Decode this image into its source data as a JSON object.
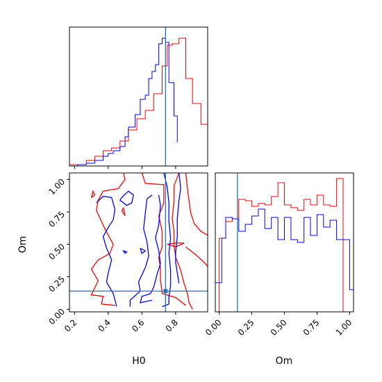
{
  "chart_data": {
    "type": "corner",
    "parameters": [
      "H0",
      "Om"
    ],
    "truths": {
      "H0": 0.74,
      "Om": 0.14
    },
    "colors": {
      "series_red": "#ff0000",
      "series_blue": "#0000ff",
      "truth": "#1f77b4"
    },
    "grid": false,
    "legend": "none",
    "panels": [
      {
        "id": "hist-h0",
        "type": "histogram",
        "xlim": [
          0.17,
          0.99
        ],
        "xlabel": "",
        "series": [
          {
            "color": "#ff0000",
            "bin_edges": [
              0.17,
              0.22,
              0.27,
              0.32,
              0.37,
              0.42,
              0.47,
              0.52,
              0.57,
              0.62,
              0.67,
              0.72,
              0.75,
              0.78,
              0.82,
              0.86,
              0.9,
              0.95,
              0.99
            ],
            "heights": [
              0.01,
              0.01,
              0.04,
              0.07,
              0.11,
              0.13,
              0.18,
              0.26,
              0.34,
              0.4,
              0.52,
              0.72,
              0.87,
              0.88,
              0.92,
              0.63,
              0.45,
              0.3
            ]
          },
          {
            "color": "#0000ff",
            "bin_edges": [
              0.22,
              0.27,
              0.32,
              0.37,
              0.4,
              0.43,
              0.47,
              0.5,
              0.52,
              0.56,
              0.59,
              0.62,
              0.64,
              0.66,
              0.68,
              0.7,
              0.72,
              0.74,
              0.76,
              0.79,
              0.81
            ],
            "heights": [
              0.01,
              0.02,
              0.04,
              0.07,
              0.09,
              0.11,
              0.14,
              0.21,
              0.28,
              0.37,
              0.48,
              0.51,
              0.63,
              0.68,
              0.73,
              0.88,
              0.92,
              0.89,
              0.6,
              0.36,
              0.17
            ]
          }
        ]
      },
      {
        "id": "contour-h0-om",
        "type": "contour",
        "xlim": [
          0.17,
          0.99
        ],
        "ylim": [
          -0.02,
          1.05
        ],
        "xlabel": "H0",
        "ylabel": "Om",
        "xticks": [
          0.2,
          0.4,
          0.6,
          0.8
        ],
        "xtick_labels": [
          "0.2",
          "0.4",
          "0.6",
          "0.8"
        ],
        "yticks": [
          0.0,
          0.25,
          0.5,
          0.75,
          1.0
        ],
        "ytick_labels": [
          "0.00",
          "0.25",
          "0.50",
          "0.75",
          "1.00"
        ],
        "contours": [
          {
            "color": "#ff0000",
            "paths": [
              [
                [
                  0.49,
                  1.05
                ],
                [
                  0.5,
                  1.0
                ],
                [
                  0.46,
                  0.93
                ],
                [
                  0.37,
                  0.91
                ],
                [
                  0.34,
                  0.84
                ],
                [
                  0.33,
                  0.76
                ],
                [
                  0.38,
                  0.62
                ],
                [
                  0.43,
                  0.5
                ],
                [
                  0.41,
                  0.43
                ],
                [
                  0.34,
                  0.38
                ],
                [
                  0.3,
                  0.31
                ],
                [
                  0.34,
                  0.22
                ],
                [
                  0.3,
                  0.11
                ],
                [
                  0.37,
                  0.1
                ],
                [
                  0.36,
                  0.04
                ],
                [
                  0.44,
                  0.03
                ]
              ],
              [
                [
                  0.6,
                  1.05
                ],
                [
                  0.62,
                  0.97
                ],
                [
                  0.73,
                  0.96
                ],
                [
                  0.73,
                  0.9
                ],
                [
                  0.73,
                  0.82
                ],
                [
                  0.7,
                  0.72
                ],
                [
                  0.72,
                  0.6
                ],
                [
                  0.72,
                  0.48
                ],
                [
                  0.7,
                  0.4
                ],
                [
                  0.71,
                  0.32
                ],
                [
                  0.71,
                  0.23
                ],
                [
                  0.72,
                  0.12
                ],
                [
                  0.8,
                  0.09
                ],
                [
                  0.86,
                  0.03
                ]
              ],
              [
                [
                  0.82,
                  1.05
                ],
                [
                  0.79,
                  0.95
                ],
                [
                  0.79,
                  0.83
                ],
                [
                  0.78,
                  0.7
                ],
                [
                  0.79,
                  0.6
                ],
                [
                  0.79,
                  0.5
                ],
                [
                  0.8,
                  0.4
                ],
                [
                  0.83,
                  0.3
                ],
                [
                  0.85,
                  0.2
                ],
                [
                  0.87,
                  0.12
                ],
                [
                  0.88,
                  0.05
                ],
                [
                  0.9,
                  0.0
                ]
              ],
              [
                [
                  0.86,
                  1.05
                ],
                [
                  0.87,
                  0.93
                ],
                [
                  0.88,
                  0.83
                ],
                [
                  0.89,
                  0.74
                ],
                [
                  0.91,
                  0.66
                ],
                [
                  0.95,
                  0.6
                ],
                [
                  0.99,
                  0.57
                ]
              ],
              [
                [
                  0.86,
                  0.48
                ],
                [
                  0.92,
                  0.42
                ],
                [
                  0.97,
                  0.36
                ],
                [
                  0.99,
                  0.33
                ]
              ],
              [
                [
                  0.75,
                  0.5
                ],
                [
                  0.8,
                  0.51
                ],
                [
                  0.85,
                  0.51
                ],
                [
                  0.8,
                  0.48
                ],
                [
                  0.75,
                  0.5
                ]
              ],
              [
                [
                  0.3,
                  0.86
                ],
                [
                  0.32,
                  0.88
                ],
                [
                  0.31,
                  0.91
                ],
                [
                  0.3,
                  0.86
                ]
              ],
              [
                [
                  0.48,
                  0.76
                ],
                [
                  0.49,
                  0.78
                ],
                [
                  0.5,
                  0.72
                ],
                [
                  0.48,
                  0.76
                ]
              ]
            ]
          },
          {
            "color": "#0000ff",
            "paths": [
              [
                [
                  0.33,
                  0.82
                ],
                [
                  0.37,
                  0.87
                ],
                [
                  0.42,
                  0.86
                ],
                [
                  0.44,
                  0.77
                ],
                [
                  0.43,
                  0.69
                ],
                [
                  0.4,
                  0.63
                ],
                [
                  0.37,
                  0.56
                ],
                [
                  0.39,
                  0.47
                ],
                [
                  0.42,
                  0.38
                ],
                [
                  0.4,
                  0.28
                ],
                [
                  0.39,
                  0.21
                ],
                [
                  0.43,
                  0.12
                ],
                [
                  0.45,
                  0.02
                ]
              ],
              [
                [
                  0.48,
                  0.86
                ],
                [
                  0.52,
                  0.91
                ],
                [
                  0.55,
                  0.88
                ],
                [
                  0.54,
                  0.82
                ],
                [
                  0.51,
                  0.8
                ],
                [
                  0.47,
                  0.84
                ],
                [
                  0.48,
                  0.86
                ]
              ],
              [
                [
                  0.53,
                  0.02
                ],
                [
                  0.53,
                  0.07
                ],
                [
                  0.59,
                  0.14
                ],
                [
                  0.58,
                  0.21
                ],
                [
                  0.62,
                  0.32
                ],
                [
                  0.64,
                  0.41
                ],
                [
                  0.63,
                  0.52
                ],
                [
                  0.61,
                  0.62
                ],
                [
                  0.62,
                  0.74
                ],
                [
                  0.63,
                  0.85
                ],
                [
                  0.66,
                  0.88
                ]
              ],
              [
                [
                  0.7,
                  0.88
                ],
                [
                  0.71,
                  0.8
                ],
                [
                  0.7,
                  0.65
                ],
                [
                  0.68,
                  0.55
                ],
                [
                  0.7,
                  0.45
                ],
                [
                  0.71,
                  0.35
                ],
                [
                  0.69,
                  0.27
                ],
                [
                  0.67,
                  0.17
                ],
                [
                  0.65,
                  0.12
                ],
                [
                  0.6,
                  0.1
                ],
                [
                  0.59,
                  0.05
                ],
                [
                  0.66,
                  0.07
                ]
              ],
              [
                [
                  0.73,
                  1.05
                ],
                [
                  0.75,
                  0.94
                ],
                [
                  0.76,
                  0.82
                ],
                [
                  0.76,
                  0.68
                ],
                [
                  0.77,
                  0.55
                ],
                [
                  0.76,
                  0.43
                ],
                [
                  0.77,
                  0.3
                ],
                [
                  0.77,
                  0.18
                ],
                [
                  0.76,
                  0.1
                ],
                [
                  0.76,
                  0.04
                ],
                [
                  0.72,
                  0.02
                ]
              ],
              [
                [
                  0.82,
                  1.05
                ],
                [
                  0.83,
                  0.93
                ],
                [
                  0.82,
                  0.84
                ],
                [
                  0.81,
                  0.7
                ],
                [
                  0.81,
                  0.56
                ],
                [
                  0.8,
                  0.44
                ],
                [
                  0.8,
                  0.36
                ],
                [
                  0.81,
                  0.28
                ],
                [
                  0.82,
                  0.2
                ]
              ],
              [
                [
                  0.59,
                  0.47
                ],
                [
                  0.62,
                  0.45
                ],
                [
                  0.6,
                  0.43
                ],
                [
                  0.59,
                  0.47
                ]
              ],
              [
                [
                  0.5,
                  0.43
                ],
                [
                  0.51,
                  0.44
                ],
                [
                  0.49,
                  0.45
                ],
                [
                  0.5,
                  0.43
                ]
              ]
            ]
          }
        ]
      },
      {
        "id": "hist-om",
        "type": "histogram",
        "xlim": [
          -0.03,
          1.03
        ],
        "xlabel": "Om",
        "xticks": [
          0.0,
          0.25,
          0.5,
          0.75,
          1.0
        ],
        "xtick_labels": [
          "0.00",
          "0.25",
          "0.50",
          "0.75",
          "1.00"
        ],
        "series": [
          {
            "color": "#ff0000",
            "bin_edges": [
              0.0,
              0.05,
              0.1,
              0.15,
              0.2,
              0.25,
              0.3,
              0.35,
              0.4,
              0.45,
              0.5,
              0.55,
              0.6,
              0.65,
              0.7,
              0.75,
              0.8,
              0.85,
              0.9,
              0.95,
              1.0
            ],
            "heights": [
              0.53,
              0.65,
              0.67,
              0.81,
              0.8,
              0.76,
              0.78,
              0.77,
              0.83,
              0.93,
              0.77,
              0.75,
              0.73,
              0.81,
              0.77,
              0.84,
              0.77,
              0.76,
              0.96,
              0.0
            ]
          },
          {
            "color": "#0000ff",
            "bin_edges": [
              -0.03,
              0.02,
              0.05,
              0.1,
              0.15,
              0.2,
              0.25,
              0.3,
              0.35,
              0.4,
              0.45,
              0.5,
              0.55,
              0.6,
              0.65,
              0.7,
              0.75,
              0.8,
              0.85,
              0.9,
              0.95,
              1.0,
              1.03
            ],
            "heights": [
              0.21,
              0.53,
              0.68,
              0.67,
              0.58,
              0.63,
              0.69,
              0.74,
              0.6,
              0.68,
              0.52,
              0.68,
              0.52,
              0.5,
              0.68,
              0.55,
              0.7,
              0.61,
              0.66,
              0.52,
              0.52,
              0.16
            ]
          }
        ]
      }
    ]
  }
}
